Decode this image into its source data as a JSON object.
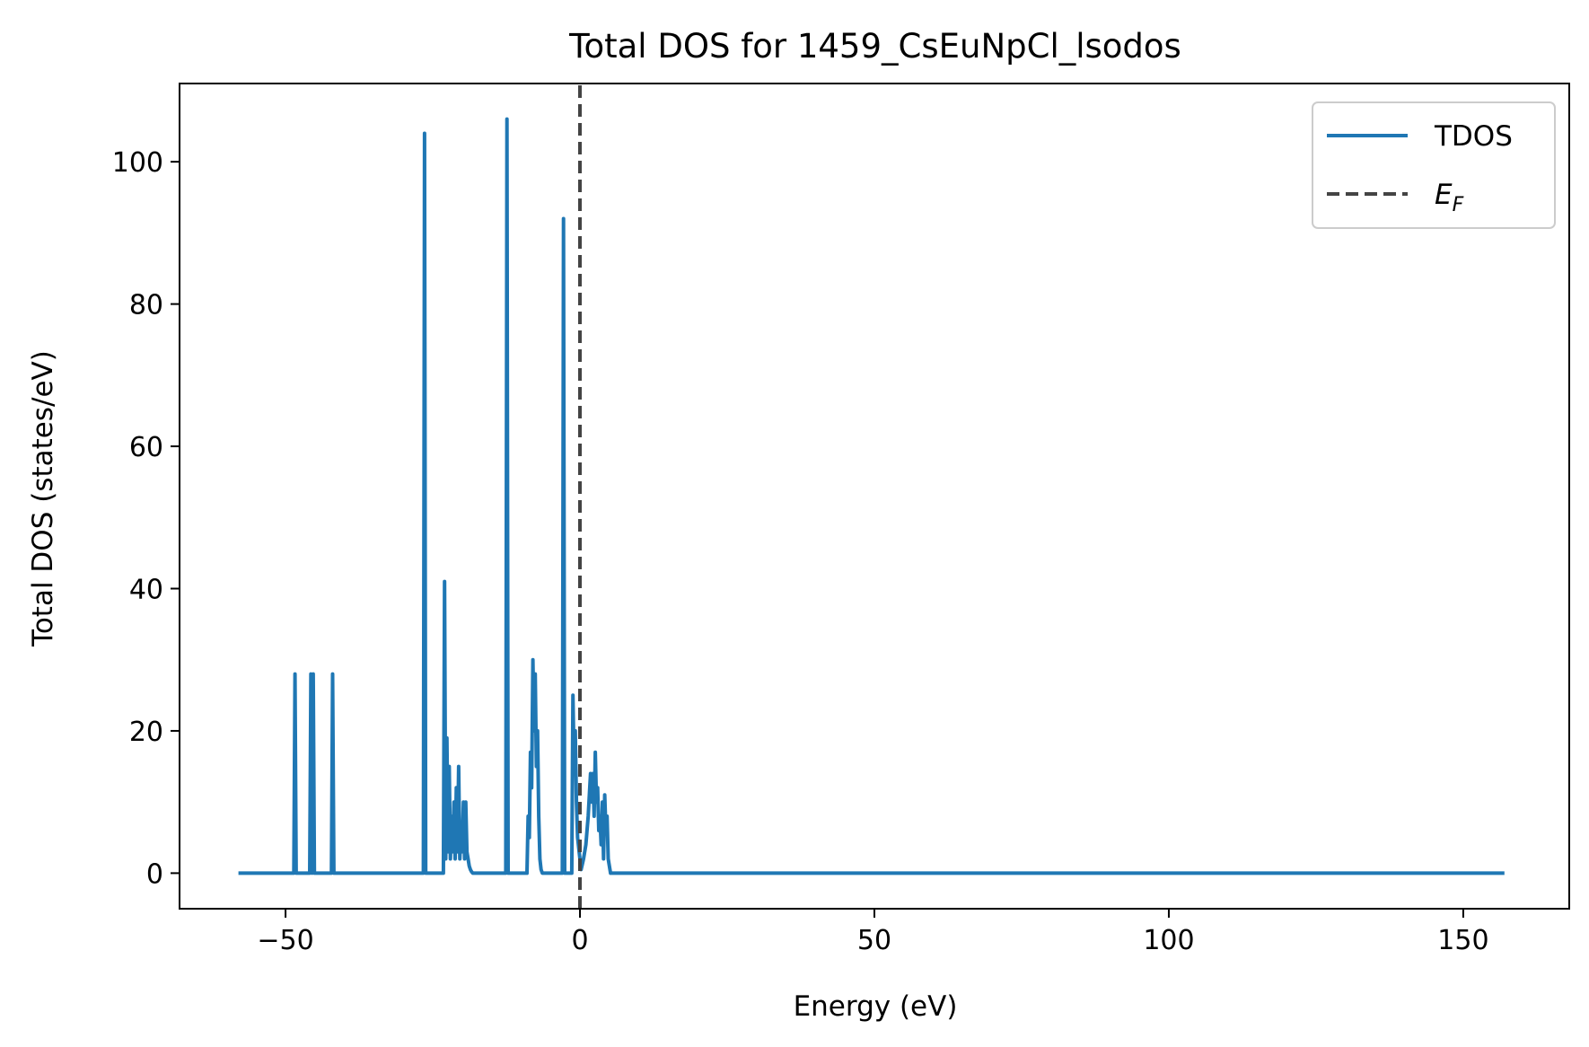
{
  "chart_data": {
    "type": "line",
    "title": "Total DOS for 1459_CsEuNpCl_lsodos",
    "xlabel": "Energy (eV)",
    "ylabel": "Total DOS (states/eV)",
    "xlim": [
      -68,
      168
    ],
    "ylim": [
      -5,
      111
    ],
    "xticks": [
      -50,
      0,
      50,
      100,
      150
    ],
    "xtick_labels": [
      "−50",
      "0",
      "50",
      "100",
      "150"
    ],
    "yticks": [
      0,
      20,
      40,
      60,
      80,
      100
    ],
    "ytick_labels": [
      "0",
      "20",
      "40",
      "60",
      "80",
      "100"
    ],
    "grid": false,
    "legend_position": "top-right",
    "series": [
      {
        "name": "TDOS",
        "color": "#1f77b4",
        "style": "solid",
        "x": [
          -58,
          -48.6,
          -48.4,
          -48.2,
          -45.9,
          -45.7,
          -45.5,
          -45.3,
          -45.1,
          -44.9,
          -42.2,
          -42.0,
          -41.8,
          -26.6,
          -26.4,
          -26.2,
          -23.2,
          -23.0,
          -22.8,
          -22.6,
          -22.4,
          -22.2,
          -22.0,
          -21.8,
          -21.6,
          -21.4,
          -21.2,
          -21.0,
          -20.8,
          -20.6,
          -20.4,
          -20.2,
          -20.0,
          -19.8,
          -19.6,
          -19.4,
          -19.2,
          -19.0,
          -18.8,
          -18.6,
          -18.4,
          -18.2,
          -12.6,
          -12.4,
          -12.2,
          -9.0,
          -8.8,
          -8.6,
          -8.4,
          -8.2,
          -8.0,
          -7.8,
          -7.6,
          -7.4,
          -7.2,
          -7.0,
          -6.8,
          -6.6,
          -6.4,
          -6.2,
          -3.0,
          -2.8,
          -2.6,
          -1.4,
          -1.2,
          -1.0,
          -0.8,
          -0.6,
          -0.4,
          0.2,
          0.6,
          1.0,
          1.4,
          1.8,
          2.0,
          2.2,
          2.4,
          2.6,
          2.8,
          3.0,
          3.2,
          3.4,
          3.6,
          3.8,
          4.0,
          4.2,
          4.4,
          4.6,
          4.8,
          5.0,
          5.2,
          5.4,
          157
        ],
        "y": [
          0,
          0,
          28,
          0,
          0,
          28,
          0,
          28,
          0,
          0,
          0,
          28,
          0,
          0,
          104,
          0,
          0,
          41,
          2,
          19,
          3,
          15,
          2,
          8,
          3,
          10,
          2,
          12,
          3,
          15,
          2,
          6,
          3,
          10,
          2,
          10,
          3,
          2,
          1,
          0.5,
          0.2,
          0,
          0,
          106,
          0,
          0,
          8,
          5,
          17,
          12,
          30,
          20,
          28,
          15,
          20,
          8,
          2,
          0.5,
          0,
          0,
          0,
          92,
          0,
          0,
          25,
          15,
          20,
          10,
          5,
          0.5,
          2,
          4,
          8,
          14,
          10,
          14,
          8,
          17,
          10,
          12,
          6,
          8,
          4,
          10,
          2,
          11,
          6,
          8,
          2,
          1,
          0,
          0,
          0
        ]
      },
      {
        "name": "E_F",
        "color": "#444444",
        "style": "dashed",
        "x": [
          0,
          0
        ],
        "y": [
          -5,
          111
        ]
      }
    ]
  }
}
